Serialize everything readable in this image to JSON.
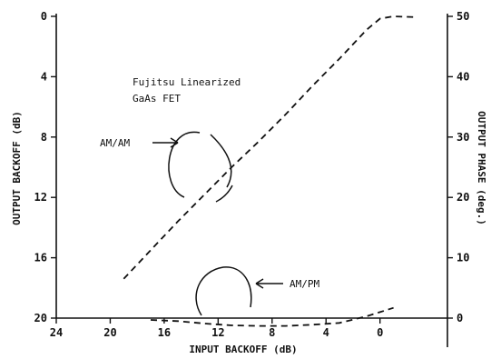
{
  "chart_data": {
    "type": "line",
    "title": "",
    "xlabel": "INPUT BACKOFF (dB)",
    "ylabel_left": "OUTPUT BACKOFF (dB)",
    "ylabel_right": "OUTPUT PHASE (deg.)",
    "xlim": [
      24,
      -5
    ],
    "ylim_left": [
      20,
      0
    ],
    "ylim_right": [
      -5,
      50
    ],
    "x_ticks": [
      24,
      20,
      16,
      12,
      8,
      4,
      0
    ],
    "x_tick_labels": [
      "24",
      "20",
      "16",
      "12",
      "8",
      "4",
      "0"
    ],
    "y_left_ticks": [
      0,
      4,
      8,
      12,
      16,
      20
    ],
    "y_left_tick_labels": [
      "0",
      "4",
      "8",
      "12",
      "16",
      "20"
    ],
    "y_right_ticks": [
      50,
      40,
      30,
      20,
      10,
      0
    ],
    "y_right_tick_labels": [
      "50",
      "40",
      "30",
      "20",
      "10",
      "0"
    ],
    "grid": false,
    "series": [
      {
        "axis": "left",
        "x": [
          19,
          17,
          15,
          13,
          11,
          9,
          7,
          5,
          3,
          1,
          0,
          -1,
          -2.5
        ],
        "y": [
          17.4,
          15.5,
          13.6,
          11.8,
          10.0,
          8.3,
          6.5,
          4.6,
          2.8,
          0.9,
          0.15,
          0.0,
          0.05
        ]
      },
      {
        "axis": "right",
        "x": [
          17,
          15,
          13,
          11,
          9,
          7,
          5,
          3,
          1,
          0,
          -1
        ],
        "y": [
          -0.3,
          -0.5,
          -0.9,
          -1.2,
          -1.3,
          -1.3,
          -1.1,
          -0.8,
          0.3,
          1.0,
          1.7
        ]
      }
    ],
    "annotations": {
      "device_line1": "Fujitsu Linearized",
      "device_line2": "GaAs FET",
      "am_am": "AM/AM",
      "am_pm": "AM/PM"
    }
  }
}
